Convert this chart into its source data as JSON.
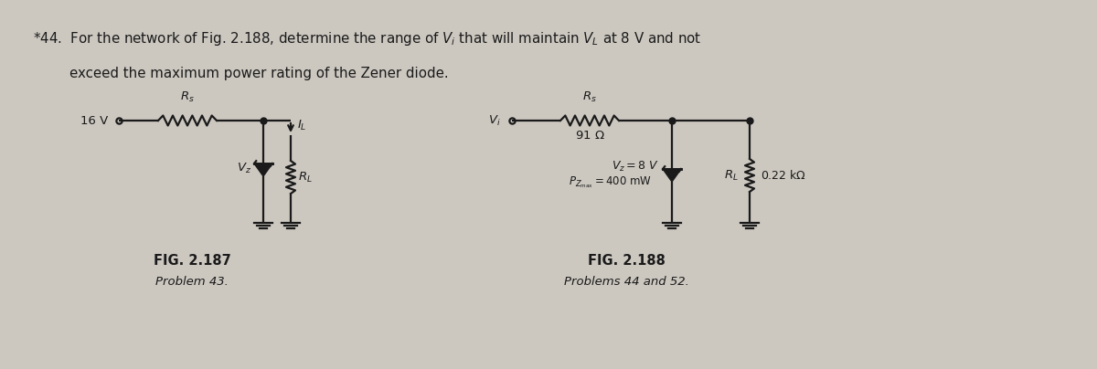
{
  "bg_color": "#ccc8c0",
  "wire_color": "#1a1a1a",
  "fig1_label": "FIG. 2.187",
  "fig1_caption": "Problem 43.",
  "fig2_label": "FIG. 2.188",
  "fig2_caption": "Problems 44 and 52.",
  "title_line1": "*44.  For the network of Fig. 2.188, determine the range of V",
  "title_line1b": "i",
  "title_line1c": " that will maintain V",
  "title_line1d": "L",
  "title_line1e": " at 8 V and not",
  "title_line2": "       exceed the maximum power rating of the Zener diode."
}
